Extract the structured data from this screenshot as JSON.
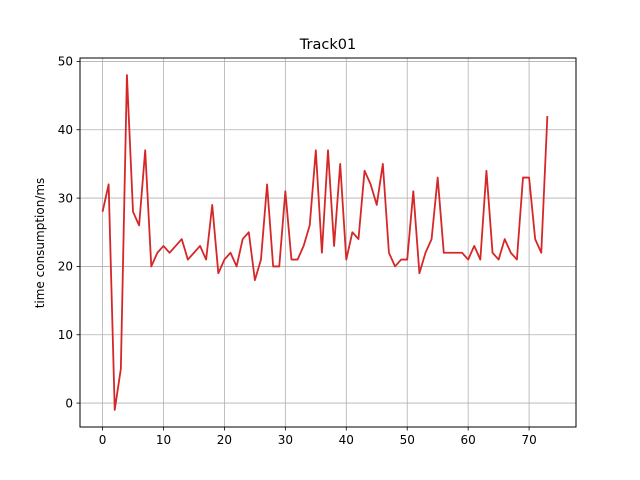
{
  "chart_data": {
    "type": "line",
    "title": "Track01",
    "xlabel": "",
    "ylabel": "time consumption/ms",
    "xlim": [
      -3.7,
      77.7
    ],
    "ylim": [
      -3.5,
      50.5
    ],
    "x_ticks": [
      0,
      10,
      20,
      30,
      40,
      50,
      60,
      70
    ],
    "y_ticks": [
      0,
      10,
      20,
      30,
      40,
      50
    ],
    "grid": true,
    "series_color": "#d62728",
    "series": [
      {
        "x": [
          0,
          1,
          2,
          3,
          4,
          5,
          6,
          7,
          8,
          9,
          10,
          11,
          12,
          13,
          14,
          15,
          16,
          17,
          18,
          19,
          20,
          21,
          22,
          23,
          24,
          25,
          26,
          27,
          28,
          29,
          30,
          31,
          32,
          33,
          34,
          35,
          36,
          37,
          38,
          39,
          40,
          41,
          42,
          43,
          44,
          45,
          46,
          47,
          48,
          49,
          50,
          51,
          52,
          53,
          54,
          55,
          56,
          57,
          58,
          59,
          60,
          61,
          62,
          63,
          64,
          65,
          66,
          67,
          68,
          69,
          70,
          71,
          72,
          73,
          74
        ],
        "values": [
          28,
          32,
          -1,
          5,
          48,
          28,
          26,
          37,
          20,
          22,
          23,
          22,
          23,
          24,
          21,
          22,
          23,
          21,
          29,
          19,
          21,
          22,
          20,
          24,
          25,
          18,
          21,
          32,
          20,
          20,
          31,
          21,
          21,
          23,
          26,
          37,
          22,
          37,
          23,
          35,
          21,
          25,
          24,
          34,
          32,
          29,
          35,
          22,
          20,
          21,
          21,
          31,
          19,
          22,
          24,
          33,
          22,
          22,
          22,
          22,
          21,
          23,
          21,
          34,
          22,
          21,
          24,
          22,
          21,
          33,
          33,
          24,
          22,
          42,
          null
        ]
      }
    ]
  }
}
